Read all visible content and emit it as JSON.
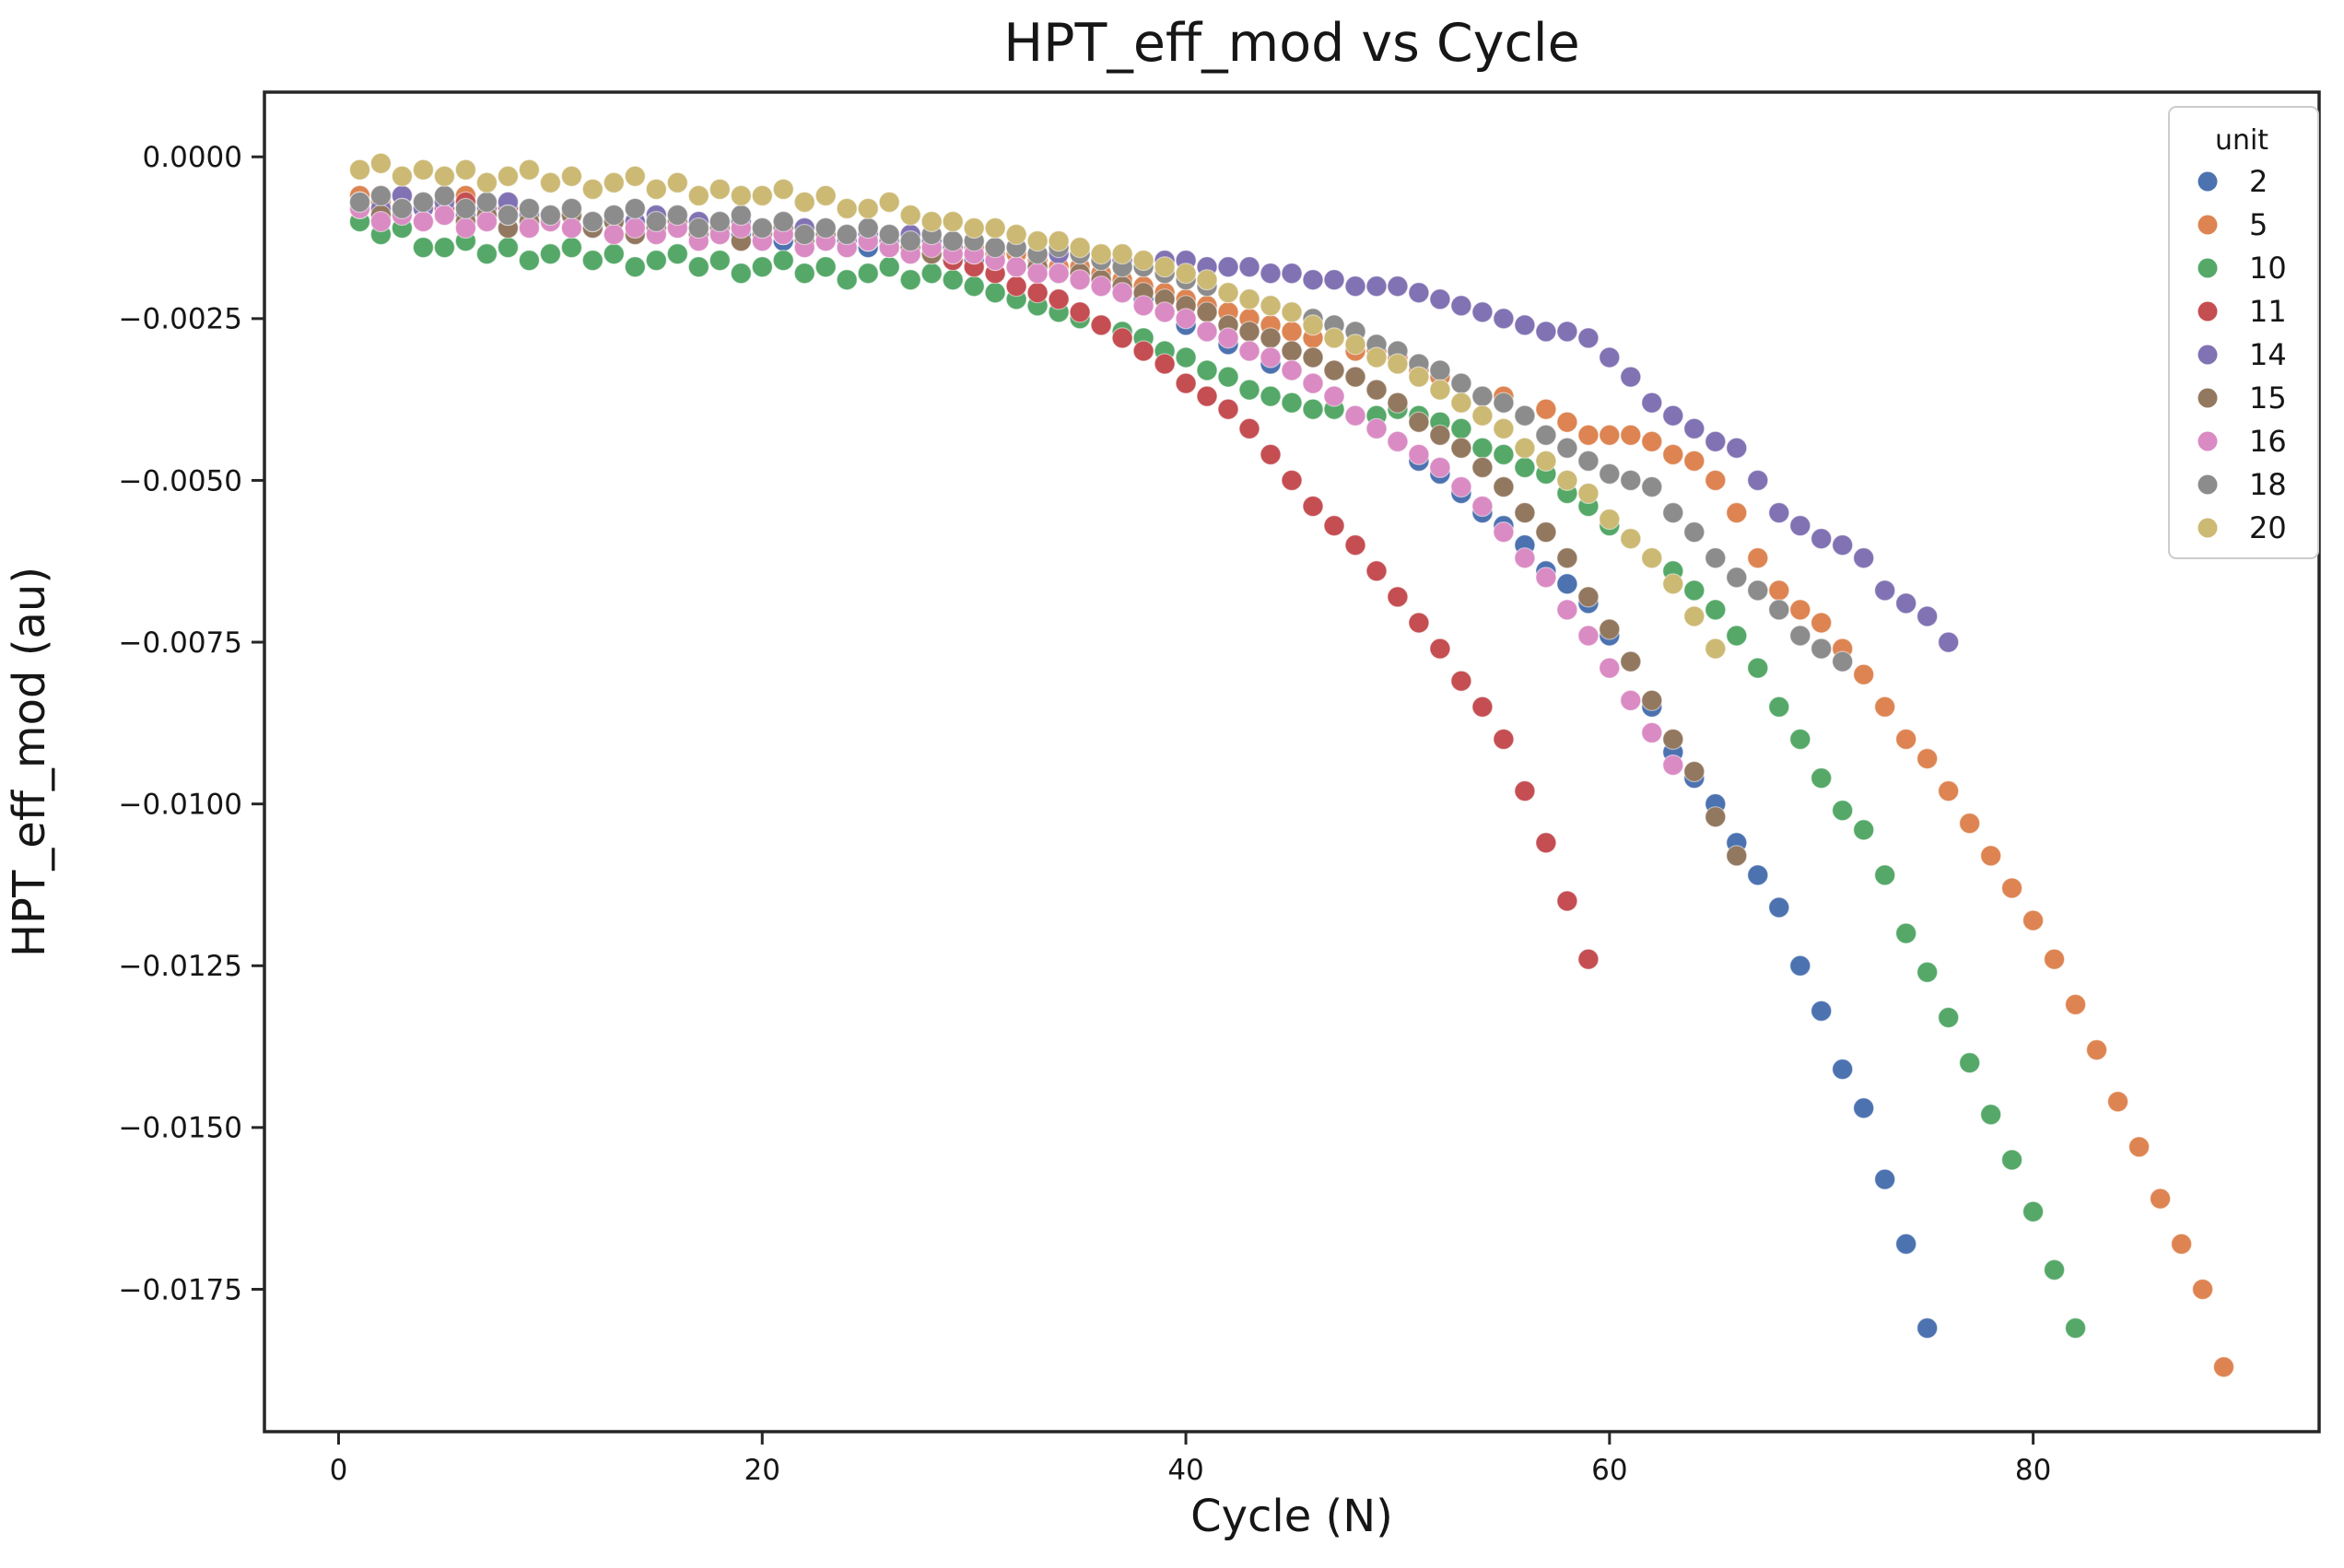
{
  "title": "HPT_eff_mod vs Cycle",
  "x_axis": {
    "label": "Cycle (N)",
    "ticks": [
      {
        "label": "0",
        "value": 0
      },
      {
        "label": "20",
        "value": 20
      },
      {
        "label": "40",
        "value": 40
      },
      {
        "label": "60",
        "value": 60
      },
      {
        "label": "80",
        "value": 80
      }
    ]
  },
  "y_axis": {
    "label": "HPT_eff_mod (au)",
    "ticks": [
      {
        "label": "0.0000",
        "value": 0
      },
      {
        "label": "−0.0025",
        "value": -0.0025
      },
      {
        "label": "−0.0050",
        "value": -0.005
      },
      {
        "label": "−0.0075",
        "value": -0.0075
      },
      {
        "label": "−0.0100",
        "value": -0.01
      },
      {
        "label": "−0.0125",
        "value": -0.0125
      },
      {
        "label": "−0.0150",
        "value": -0.015
      },
      {
        "label": "−0.0175",
        "value": -0.0175
      }
    ]
  },
  "legend": {
    "title": "unit",
    "entries": [
      {
        "label": "2",
        "color": "#4C72B0"
      },
      {
        "label": "5",
        "color": "#DD8452"
      },
      {
        "label": "10",
        "color": "#55A868"
      },
      {
        "label": "11",
        "color": "#C44E52"
      },
      {
        "label": "14",
        "color": "#8172B3"
      },
      {
        "label": "15",
        "color": "#937860"
      },
      {
        "label": "16",
        "color": "#DA8BC3"
      },
      {
        "label": "18",
        "color": "#8C8C8C"
      },
      {
        "label": "20",
        "color": "#CCB974"
      }
    ]
  },
  "chart_data": {
    "type": "scatter",
    "title": "HPT_eff_mod vs Cycle",
    "xlabel": "Cycle (N)",
    "ylabel": "HPT_eff_mod (au)",
    "xlim": [
      -3.5,
      93.5
    ],
    "ylim": [
      -0.0197,
      0.001
    ],
    "grid": false,
    "legend_title": "unit",
    "legend_position": "upper right",
    "marker_radius_px": 11,
    "value_scale": -0.0001,
    "value_note": "Each series lists HPT_eff_mod magnitude per cycle in units of 1e-4 au (multiply by value_scale for actual signed value). Cycles run from start_cycle with step 1.",
    "series": [
      {
        "name": "2",
        "color": "#4C72B0",
        "start_cycle": 1,
        "end_value": -0.0181,
        "values": [
          8,
          7,
          9,
          8,
          9,
          8,
          10,
          9,
          10,
          10,
          9,
          11,
          10,
          11,
          11,
          10,
          12,
          11,
          12,
          12,
          13,
          12,
          13,
          14,
          14,
          13,
          15,
          14,
          15,
          16,
          16,
          17,
          17,
          18,
          19,
          20,
          21,
          22,
          24,
          26,
          27,
          29,
          30,
          32,
          33,
          35,
          37,
          40,
          42,
          44,
          47,
          49,
          52,
          55,
          57,
          60,
          64,
          66,
          69,
          74,
          78,
          85,
          92,
          96,
          100,
          106,
          111,
          116,
          125,
          132,
          141,
          147,
          158,
          168,
          181
        ]
      },
      {
        "name": "5",
        "color": "#DD8452",
        "start_cycle": 1,
        "end_value": -0.0187,
        "values": [
          6,
          7,
          6,
          8,
          7,
          6,
          8,
          7,
          9,
          9,
          8,
          10,
          9,
          10,
          9,
          10,
          11,
          10,
          11,
          11,
          10,
          12,
          11,
          12,
          12,
          13,
          13,
          14,
          14,
          14,
          15,
          15,
          16,
          17,
          17,
          18,
          19,
          20,
          21,
          22,
          23,
          24,
          25,
          26,
          27,
          28,
          28,
          30,
          30,
          31,
          33,
          34,
          35,
          37,
          37,
          40,
          39,
          41,
          43,
          43,
          43,
          44,
          46,
          47,
          50,
          55,
          62,
          67,
          70,
          72,
          76,
          80,
          85,
          90,
          93,
          98,
          103,
          108,
          113,
          118,
          124,
          131,
          138,
          146,
          153,
          161,
          168,
          175,
          187
        ]
      },
      {
        "name": "10",
        "color": "#55A868",
        "start_cycle": 1,
        "end_value": -0.0181,
        "values": [
          10,
          12,
          11,
          14,
          14,
          13,
          15,
          14,
          16,
          15,
          14,
          16,
          15,
          17,
          16,
          15,
          17,
          16,
          18,
          17,
          16,
          18,
          17,
          19,
          18,
          17,
          19,
          18,
          19,
          20,
          21,
          22,
          23,
          24,
          25,
          26,
          27,
          28,
          30,
          31,
          33,
          34,
          36,
          37,
          38,
          39,
          39,
          40,
          40,
          39,
          40,
          41,
          42,
          45,
          46,
          48,
          49,
          52,
          54,
          57,
          59,
          62,
          64,
          67,
          70,
          74,
          79,
          85,
          90,
          96,
          101,
          104,
          111,
          120,
          126,
          133,
          140,
          148,
          155,
          163,
          172,
          181
        ]
      },
      {
        "name": "11",
        "color": "#C44E52",
        "start_cycle": 1,
        "end_value": -0.0124,
        "values": [
          7,
          6,
          8,
          7,
          8,
          7,
          9,
          8,
          9,
          9,
          8,
          10,
          9,
          10,
          10,
          9,
          11,
          10,
          11,
          11,
          12,
          11,
          12,
          13,
          13,
          14,
          14,
          15,
          16,
          17,
          18,
          20,
          21,
          22,
          24,
          26,
          28,
          30,
          32,
          35,
          37,
          39,
          42,
          46,
          50,
          54,
          57,
          60,
          64,
          68,
          72,
          76,
          81,
          85,
          90,
          98,
          106,
          115,
          124
        ]
      },
      {
        "name": "14",
        "color": "#8172B3",
        "start_cycle": 1,
        "end_value": -0.0075,
        "values": [
          7,
          8,
          6,
          8,
          7,
          9,
          8,
          7,
          9,
          9,
          8,
          10,
          9,
          10,
          9,
          11,
          10,
          11,
          10,
          11,
          12,
          11,
          12,
          13,
          12,
          13,
          12,
          13,
          14,
          13,
          14,
          14,
          15,
          15,
          15,
          16,
          16,
          16,
          16,
          16,
          17,
          17,
          17,
          18,
          18,
          19,
          19,
          20,
          20,
          20,
          21,
          22,
          23,
          24,
          25,
          26,
          27,
          27,
          28,
          31,
          34,
          38,
          40,
          42,
          44,
          45,
          50,
          55,
          57,
          59,
          60,
          62,
          67,
          69,
          71,
          75
        ]
      },
      {
        "name": "15",
        "color": "#937860",
        "start_cycle": 1,
        "end_value": -0.0108,
        "values": [
          8,
          9,
          8,
          10,
          9,
          10,
          9,
          11,
          10,
          10,
          9,
          11,
          10,
          12,
          11,
          10,
          12,
          11,
          13,
          12,
          11,
          13,
          12,
          14,
          13,
          14,
          14,
          15,
          15,
          15,
          16,
          17,
          17,
          18,
          18,
          19,
          20,
          21,
          22,
          23,
          24,
          26,
          27,
          28,
          30,
          31,
          33,
          34,
          36,
          38,
          41,
          43,
          45,
          48,
          51,
          55,
          58,
          62,
          68,
          73,
          78,
          84,
          90,
          95,
          102,
          108
        ]
      },
      {
        "name": "16",
        "color": "#DA8BC3",
        "start_cycle": 1,
        "end_value": -0.0094,
        "values": [
          8,
          10,
          9,
          10,
          9,
          11,
          10,
          9,
          11,
          10,
          11,
          10,
          12,
          11,
          12,
          11,
          13,
          12,
          11,
          13,
          12,
          14,
          13,
          14,
          13,
          14,
          15,
          14,
          15,
          15,
          16,
          17,
          18,
          18,
          19,
          20,
          21,
          23,
          24,
          25,
          27,
          28,
          30,
          31,
          33,
          35,
          37,
          40,
          42,
          44,
          46,
          48,
          51,
          54,
          58,
          62,
          65,
          70,
          74,
          79,
          84,
          89,
          94
        ]
      },
      {
        "name": "18",
        "color": "#8C8C8C",
        "start_cycle": 1,
        "end_value": -0.0078,
        "values": [
          7,
          6,
          8,
          7,
          6,
          8,
          7,
          9,
          8,
          9,
          8,
          10,
          9,
          8,
          10,
          9,
          11,
          10,
          9,
          11,
          10,
          12,
          11,
          12,
          11,
          12,
          13,
          12,
          13,
          13,
          14,
          14,
          15,
          14,
          15,
          16,
          17,
          17,
          18,
          19,
          20,
          21,
          22,
          23,
          24,
          25,
          26,
          27,
          29,
          30,
          32,
          33,
          35,
          37,
          38,
          40,
          43,
          45,
          47,
          49,
          50,
          51,
          55,
          58,
          62,
          65,
          67,
          70,
          74,
          76,
          78
        ]
      },
      {
        "name": "20",
        "color": "#CCB974",
        "start_cycle": 1,
        "end_value": -0.0076,
        "values": [
          2,
          1,
          3,
          2,
          3,
          2,
          4,
          3,
          2,
          4,
          3,
          5,
          4,
          3,
          5,
          4,
          6,
          5,
          6,
          6,
          5,
          7,
          6,
          8,
          8,
          7,
          9,
          10,
          10,
          11,
          11,
          12,
          13,
          13,
          14,
          15,
          15,
          16,
          17,
          18,
          19,
          21,
          22,
          23,
          24,
          26,
          28,
          29,
          31,
          32,
          34,
          36,
          38,
          40,
          42,
          45,
          47,
          50,
          52,
          56,
          59,
          62,
          66,
          71,
          76
        ]
      }
    ]
  }
}
